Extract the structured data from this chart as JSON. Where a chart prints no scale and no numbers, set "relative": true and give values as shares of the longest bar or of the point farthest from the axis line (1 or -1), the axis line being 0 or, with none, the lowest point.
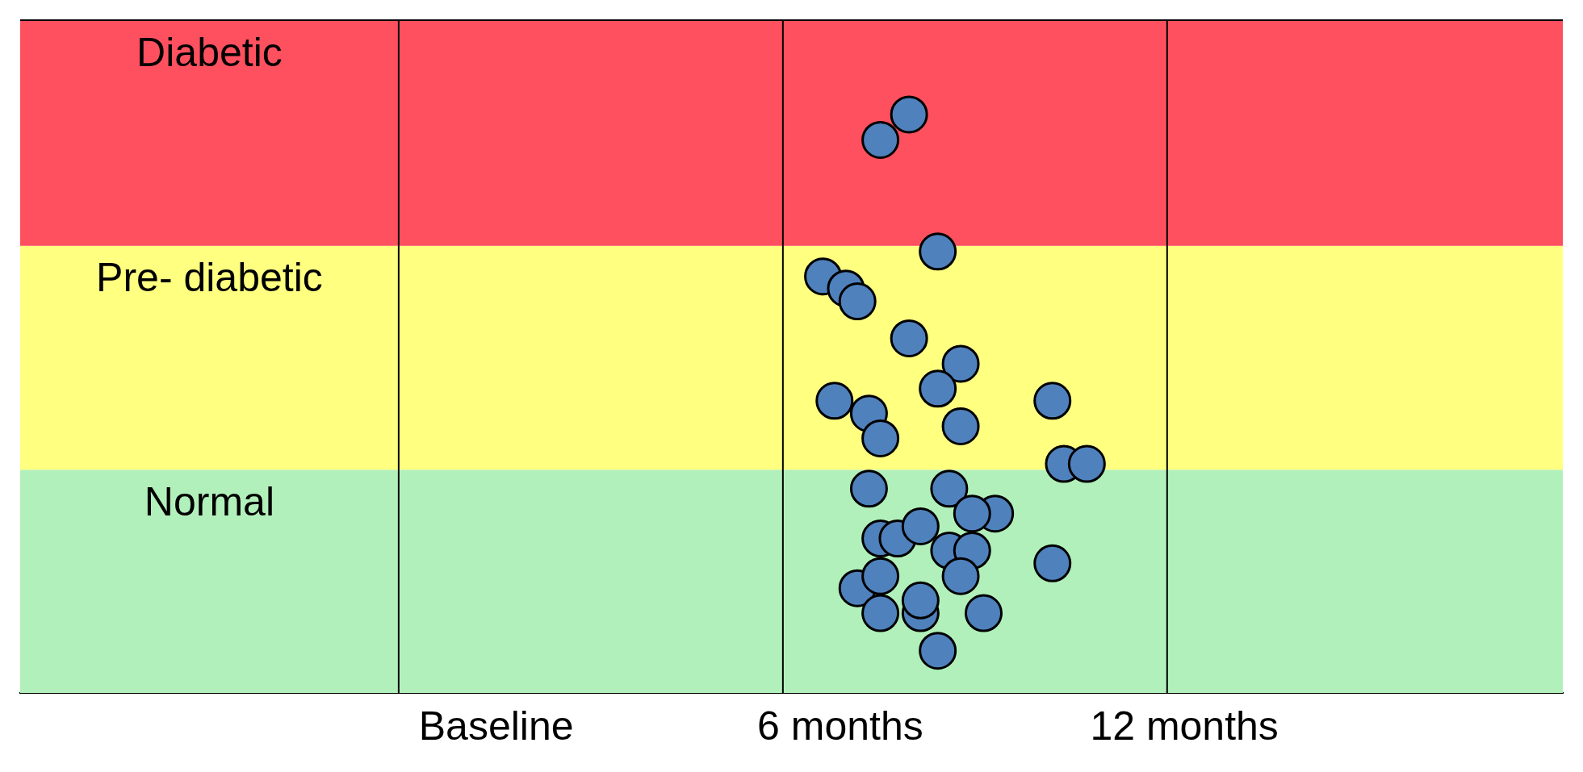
{
  "chart_data": {
    "type": "scatter",
    "relative": true,
    "x": [
      7.2,
      6.7,
      7.7,
      5.7,
      6.1,
      6.3,
      7.2,
      8.1,
      7.7,
      5.9,
      6.5,
      6.7,
      8.1,
      9.7,
      9.9,
      10.3,
      6.5,
      7.9,
      8.7,
      8.3,
      6.7,
      7.0,
      7.4,
      7.9,
      8.3,
      8.1,
      9.7,
      6.3,
      6.7,
      7.4,
      7.4,
      6.7,
      8.5,
      7.7
    ],
    "values": [
      1,
      0.956,
      0.763,
      0.72,
      0.699,
      0.677,
      0.613,
      0.569,
      0.526,
      0.505,
      0.483,
      0.44,
      0.461,
      0.505,
      0.396,
      0.396,
      0.353,
      0.353,
      0.31,
      0.31,
      0.267,
      0.267,
      0.288,
      0.246,
      0.246,
      0.202,
      0.224,
      0.181,
      0.202,
      0.138,
      0.16,
      0.138,
      0.138,
      0.073
    ],
    "color": "#4f81bd",
    "marker": "circle",
    "xlim": [
      -8.3,
      18.6
    ],
    "xticks": [
      {
        "value": 0,
        "label": "Baseline"
      },
      {
        "value": 6,
        "label": "6 months"
      },
      {
        "value": 12,
        "label": "12 months"
      }
    ],
    "bands": [
      {
        "axis": "y",
        "from": 0,
        "to": 0.386,
        "label": "Normal",
        "color": "#b2f0bb"
      },
      {
        "axis": "y",
        "from": 0.386,
        "to": 0.773,
        "label": "Pre- diabetic",
        "color": "#ffff80"
      },
      {
        "axis": "y",
        "from": 0.773,
        "to": 1.163,
        "label": "Diabetic",
        "color": "#ff505f"
      }
    ],
    "ref_lines": [
      {
        "axis": "x",
        "value": -1.7,
        "color": "#000000"
      },
      {
        "axis": "x",
        "value": 5,
        "color": "#000000"
      },
      {
        "axis": "x",
        "value": 11.7,
        "color": "#000000"
      }
    ],
    "grid": false,
    "legend": false
  }
}
